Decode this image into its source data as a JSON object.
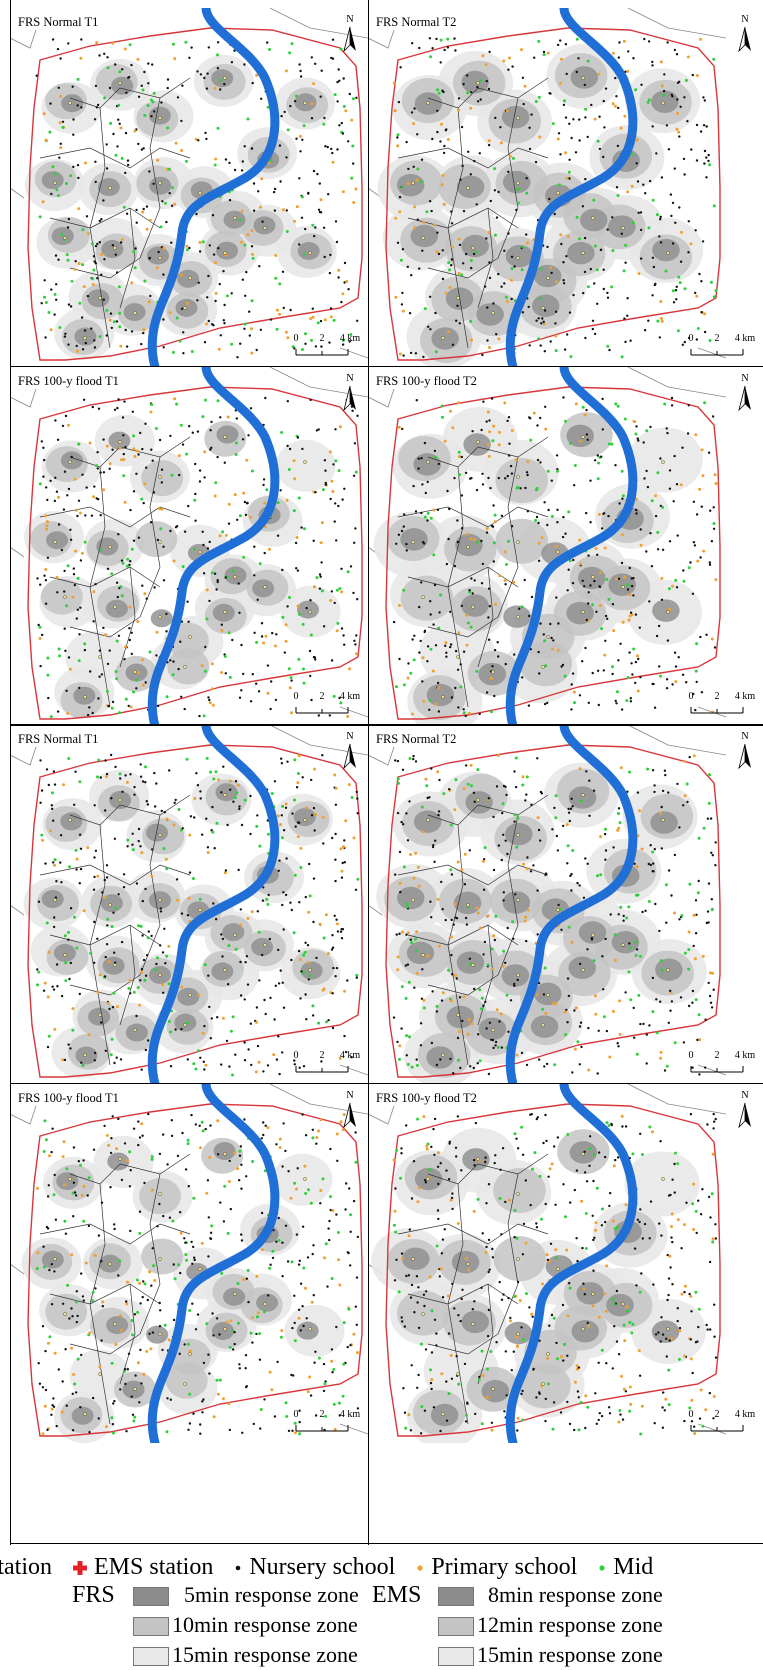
{
  "panels": [
    {
      "title": "FRS Normal T1",
      "variant": "t1"
    },
    {
      "title": "FRS Normal T2",
      "variant": "t2"
    },
    {
      "title": "FRS 100-y flood T1",
      "variant": "t1f"
    },
    {
      "title": "FRS 100-y flood T2",
      "variant": "t2f"
    },
    {
      "title": "FRS Normal T1",
      "variant": "t1"
    },
    {
      "title": "FRS Normal T2",
      "variant": "t2"
    },
    {
      "title": "FRS 100-y flood T1",
      "variant": "t1f"
    },
    {
      "title": "FRS 100-y flood T2",
      "variant": "t2f"
    }
  ],
  "north_label": "N",
  "scale": {
    "labels": [
      "0",
      "2",
      "4 km"
    ]
  },
  "legend": {
    "row1": [
      {
        "label": "station",
        "symbol": "none"
      },
      {
        "label": "EMS station",
        "symbol": "red-cross-icon"
      },
      {
        "label": "Nursery school",
        "symbol": "black-dot-icon"
      },
      {
        "label": "Primary school",
        "symbol": "orange-dot-icon"
      },
      {
        "label": "Mid",
        "symbol": "green-dot-icon"
      }
    ],
    "frs_label": "FRS",
    "ems_label": "EMS",
    "frs_zones": [
      "5min response zone",
      "10min response zone",
      "15min response zone"
    ],
    "ems_zones": [
      "8min response zone",
      "12min response zone",
      "15min response zone"
    ],
    "zone_colors": [
      "#8c8c8c",
      "#c4c4c4",
      "#e8e8e8"
    ]
  },
  "colors": {
    "river": "#1f6fd6",
    "boundary": "#d9363b",
    "nursery": "#111111",
    "primary": "#f0a030",
    "middle": "#2fcf3c",
    "ems": "#e3222a"
  }
}
